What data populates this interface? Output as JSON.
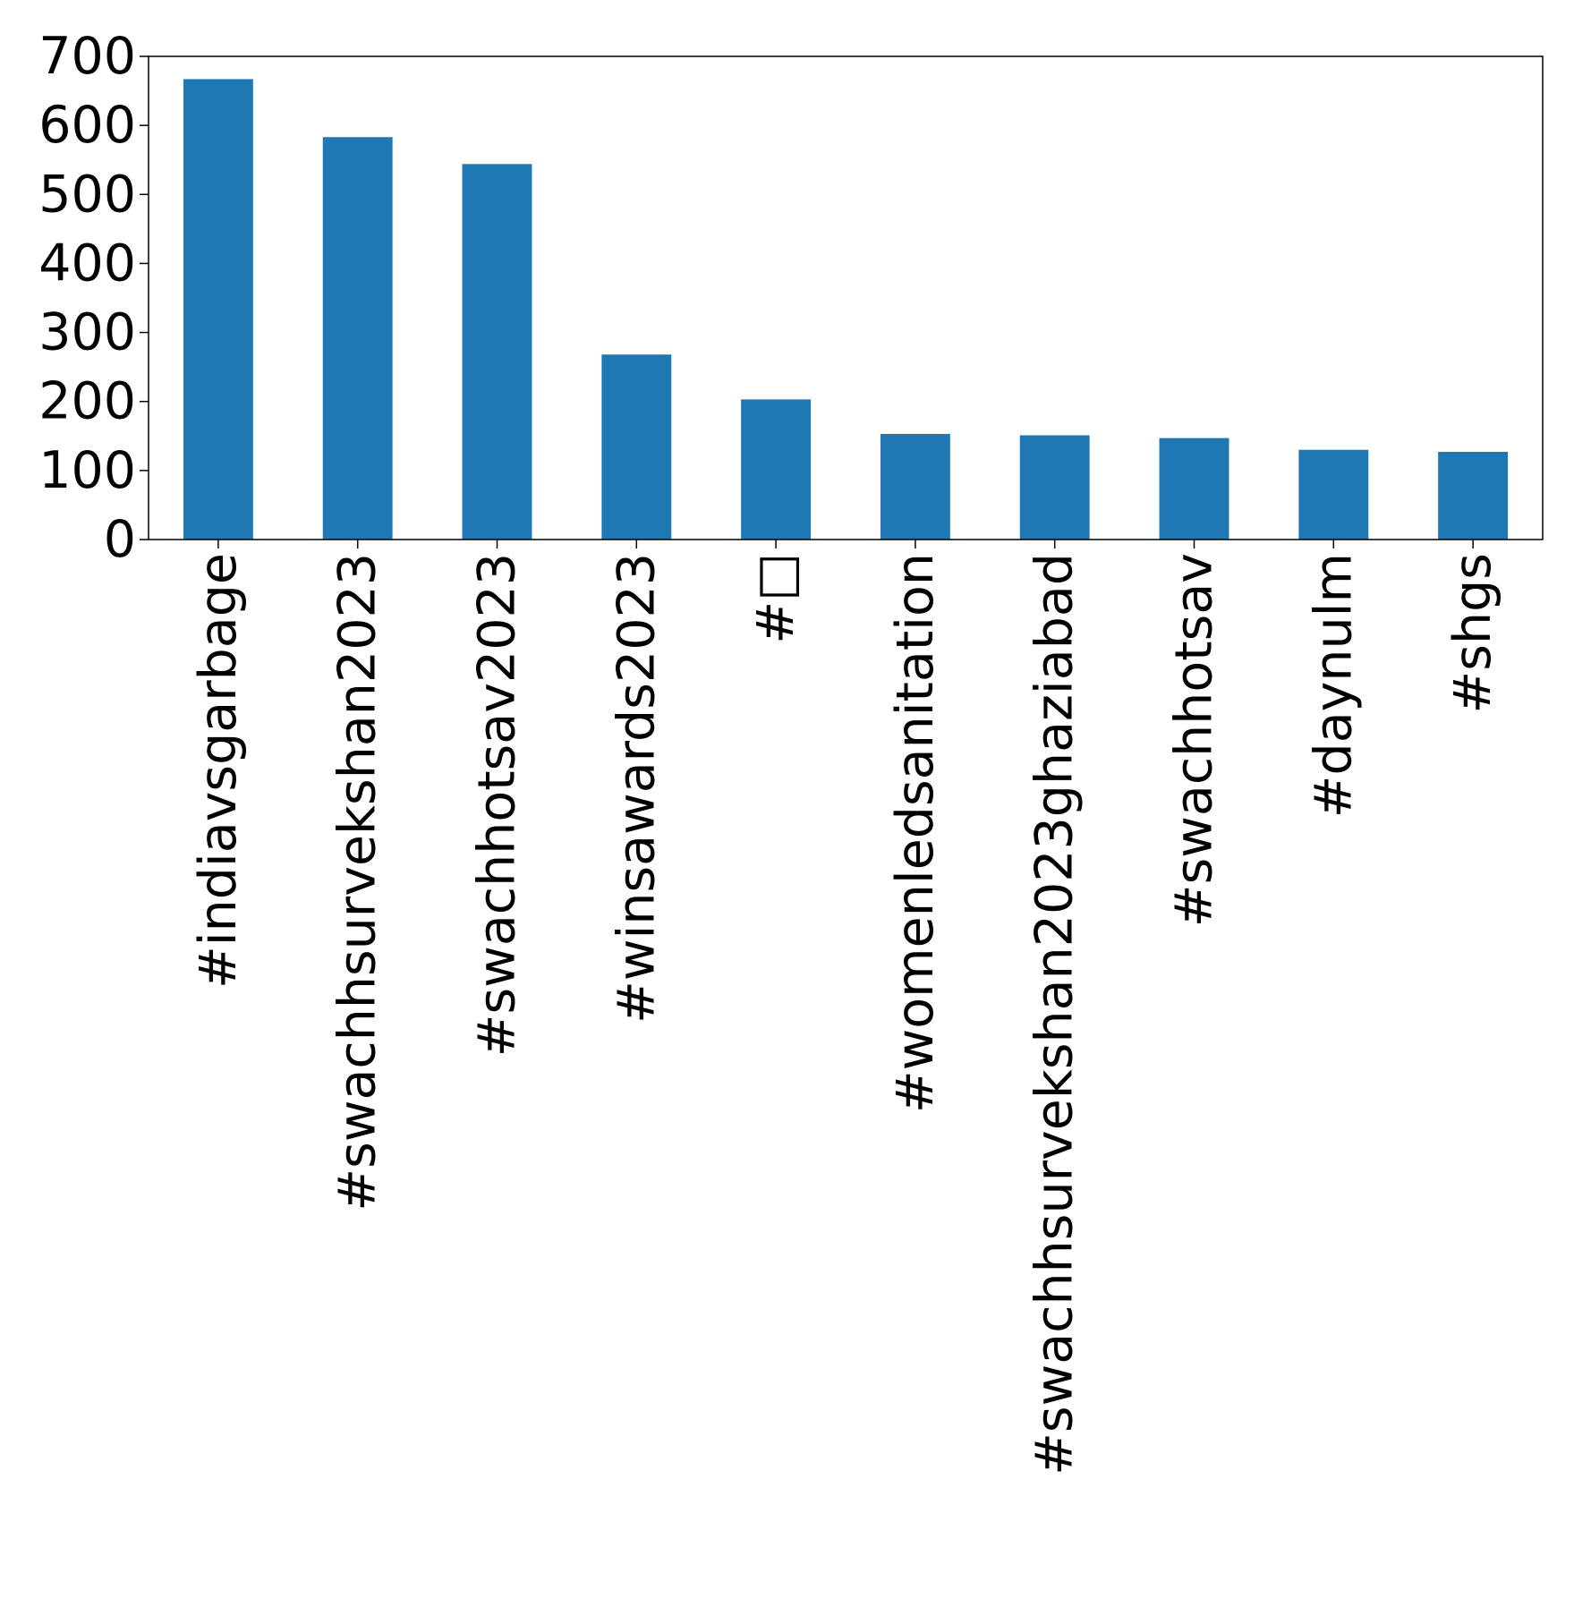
{
  "chart_data": {
    "type": "bar",
    "title": "",
    "xlabel": "",
    "ylabel": "",
    "categories": [
      "#indiavsgarbage",
      "#swachhsurvekshan2023",
      "#swachhotsav2023",
      "#winsawards2023",
      "#□",
      "#womenledsanitation",
      "#swachhsurvekshan2023ghaziabad",
      "#swachhotsav",
      "#daynulm",
      "#shgs"
    ],
    "values": [
      667,
      583,
      544,
      268,
      203,
      153,
      151,
      147,
      130,
      127
    ],
    "ylim": [
      0,
      700
    ],
    "yticks": [
      0,
      100,
      200,
      300,
      400,
      500,
      600,
      700
    ],
    "grid": false,
    "legend": "none",
    "bar_color": "#1f77b4"
  }
}
